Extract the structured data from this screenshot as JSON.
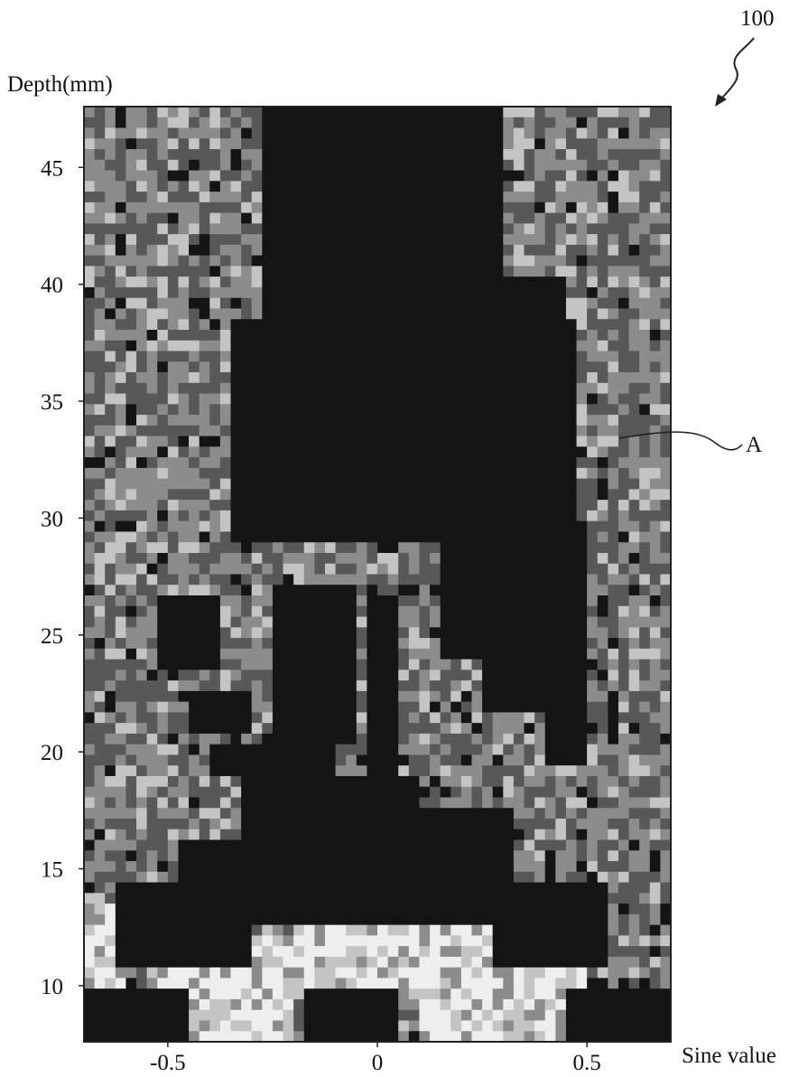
{
  "figure": {
    "number": "100",
    "callout_label": "A"
  },
  "chart_data": {
    "type": "heatmap",
    "title": "",
    "xlabel": "Sine value",
    "ylabel": "Depth(mm)",
    "xlim": [
      -0.7,
      0.7
    ],
    "ylim": [
      47.6,
      7.6
    ],
    "xticks": [
      -0.5,
      0,
      0.5
    ],
    "xtick_labels": [
      "-0.5",
      "0",
      "0.5"
    ],
    "yticks": [
      10,
      15,
      20,
      25,
      30,
      35,
      40,
      45
    ],
    "ytick_labels": [
      "10",
      "15",
      "20",
      "25",
      "30",
      "35",
      "40",
      "45"
    ],
    "grid": false,
    "legend": "none",
    "colormap": [
      "#141414",
      "#585858",
      "#8c8c8c",
      "#c4c4c4",
      "#eeeeee"
    ],
    "dark_regions": [
      {
        "x": [
          -0.7,
          -0.46
        ],
        "y": [
          7.6,
          9.8
        ]
      },
      {
        "x": [
          -0.18,
          0.05
        ],
        "y": [
          7.6,
          9.8
        ]
      },
      {
        "x": [
          0.46,
          0.7
        ],
        "y": [
          7.6,
          9.8
        ]
      },
      {
        "x": [
          -0.62,
          -0.3
        ],
        "y": [
          10.9,
          14.2
        ]
      },
      {
        "x": [
          -0.47,
          -0.3
        ],
        "y": [
          13.0,
          16.4
        ]
      },
      {
        "x": [
          0.28,
          0.56
        ],
        "y": [
          10.9,
          14.2
        ]
      },
      {
        "x": [
          -0.33,
          0.33
        ],
        "y": [
          12.7,
          17.5
        ]
      },
      {
        "x": [
          -0.33,
          0.1
        ],
        "y": [
          17.5,
          18.9
        ]
      },
      {
        "x": [
          -0.41,
          -0.1
        ],
        "y": [
          18.9,
          20.3
        ]
      },
      {
        "x": [
          -0.25,
          -0.05
        ],
        "y": [
          20.3,
          27.3
        ]
      },
      {
        "x": [
          -0.02,
          0.04
        ],
        "y": [
          17.5,
          26.5
        ]
      },
      {
        "x": [
          -0.52,
          -0.38
        ],
        "y": [
          23.5,
          26.5
        ]
      },
      {
        "x": [
          -0.45,
          -0.3
        ],
        "y": [
          20.8,
          22.8
        ]
      },
      {
        "x": [
          0.15,
          0.48
        ],
        "y": [
          23.8,
          29.3
        ]
      },
      {
        "x": [
          -0.36,
          0.48
        ],
        "y": [
          28.9,
          38.5
        ]
      },
      {
        "x": [
          -0.27,
          0.31
        ],
        "y": [
          38.5,
          47.6
        ]
      },
      {
        "x": [
          0.2,
          0.46
        ],
        "y": [
          38.5,
          40.2
        ]
      },
      {
        "x": [
          0.4,
          0.5
        ],
        "y": [
          19.5,
          30.0
        ]
      },
      {
        "x": [
          0.26,
          0.42
        ],
        "y": [
          21.6,
          24.5
        ]
      }
    ],
    "bright_regions": [
      {
        "x": [
          -0.55,
          -0.2
        ],
        "y": [
          7.6,
          12.2
        ]
      },
      {
        "x": [
          0.1,
          0.5
        ],
        "y": [
          7.6,
          12.2
        ]
      },
      {
        "x": [
          -0.2,
          0.3
        ],
        "y": [
          9.3,
          12.6
        ]
      },
      {
        "x": [
          -0.7,
          -0.6
        ],
        "y": [
          9.8,
          13.6
        ]
      }
    ]
  }
}
